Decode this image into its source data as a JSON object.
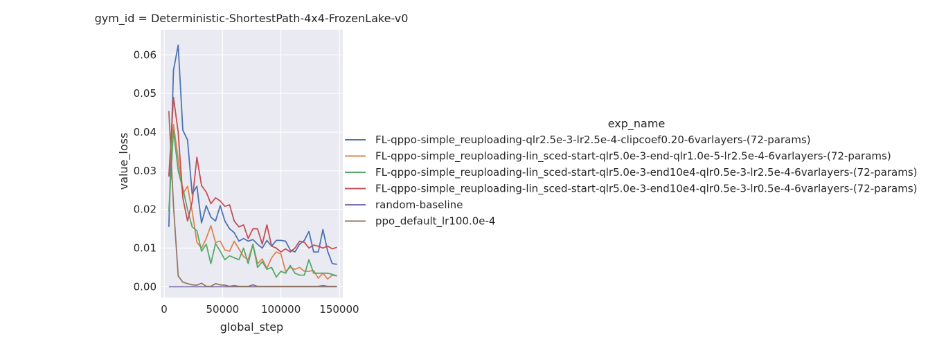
{
  "chart_data": {
    "type": "line",
    "title": "gym_id = Deterministic-ShortestPath-4x4-FrozenLake-v0",
    "xlabel": "global_step",
    "ylabel": "value_loss",
    "xlim": [
      -3000,
      153000
    ],
    "ylim": [
      -0.0028,
      0.0665
    ],
    "xticks": [
      0,
      50000,
      100000,
      150000
    ],
    "xtick_labels": [
      "0",
      "50000",
      "100000",
      "150000"
    ],
    "yticks": [
      0.0,
      0.01,
      0.02,
      0.03,
      0.04,
      0.05,
      0.06
    ],
    "ytick_labels": [
      "0.00",
      "0.01",
      "0.02",
      "0.03",
      "0.04",
      "0.05",
      "0.06"
    ],
    "grid": true,
    "legend": {
      "title": "exp_name",
      "placement": "right, outside plot"
    },
    "series": [
      {
        "name": "FL-qppo-simple_reuploading-qlr2.5e-3-lr2.5e-4-clipcoef0.20-6varlayers-(72-params)",
        "color": "#4c72b0",
        "x": [
          4000,
          8000,
          12000,
          16000,
          20000,
          24000,
          28000,
          32000,
          36000,
          40000,
          44000,
          48000,
          52000,
          56000,
          60000,
          64000,
          68000,
          72000,
          76000,
          80000,
          84000,
          88000,
          92000,
          96000,
          100000,
          104000,
          108000,
          112000,
          116000,
          120000,
          124000,
          128000,
          132000,
          136000,
          140000,
          144000,
          148000
        ],
        "y": [
          0.0155,
          0.056,
          0.0625,
          0.0405,
          0.038,
          0.024,
          0.026,
          0.0165,
          0.021,
          0.018,
          0.017,
          0.021,
          0.017,
          0.015,
          0.014,
          0.0118,
          0.0125,
          0.0118,
          0.0122,
          0.011,
          0.01,
          0.012,
          0.0105,
          0.012,
          0.012,
          0.0118,
          0.0095,
          0.009,
          0.011,
          0.012,
          0.0143,
          0.009,
          0.009,
          0.0148,
          0.0092,
          0.006,
          0.0058
        ]
      },
      {
        "name": "FL-qppo-simple_reuploading-lin_sced-start-qlr5.0e-3-end-qlr1.0e-5-lr2.5e-4-6varlayers-(72-params)",
        "color": "#dd8452",
        "x": [
          4000,
          8000,
          12000,
          16000,
          20000,
          24000,
          28000,
          32000,
          36000,
          40000,
          44000,
          48000,
          52000,
          56000,
          60000,
          64000,
          68000,
          72000,
          76000,
          80000,
          84000,
          88000,
          92000,
          96000,
          100000,
          104000,
          108000,
          112000,
          116000,
          120000,
          124000,
          128000,
          132000,
          136000,
          140000,
          144000,
          148000
        ],
        "y": [
          0.0285,
          0.042,
          0.033,
          0.024,
          0.026,
          0.0195,
          0.0115,
          0.01,
          0.0125,
          0.0158,
          0.0115,
          0.0118,
          0.0095,
          0.0092,
          0.0118,
          0.0098,
          0.0078,
          0.007,
          0.011,
          0.006,
          0.0072,
          0.0048,
          0.0075,
          0.009,
          0.0085,
          0.004,
          0.005,
          0.0045,
          0.005,
          0.004,
          0.004,
          0.0042,
          0.0022,
          0.0035,
          0.002,
          0.003,
          0.0028
        ]
      },
      {
        "name": "FL-qppo-simple_reuploading-lin_sced-start-qlr5.0e-3-end10e4-qlr0.5e-3-lr2.5e-4-6varlayers-(72-params)",
        "color": "#55a868",
        "x": [
          4000,
          8000,
          12000,
          16000,
          20000,
          24000,
          28000,
          32000,
          36000,
          40000,
          44000,
          48000,
          52000,
          56000,
          60000,
          64000,
          68000,
          72000,
          76000,
          80000,
          84000,
          88000,
          92000,
          96000,
          100000,
          104000,
          108000,
          112000,
          116000,
          120000,
          124000,
          128000,
          132000,
          136000,
          140000,
          144000,
          148000
        ],
        "y": [
          0.0195,
          0.0405,
          0.03,
          0.0255,
          0.02,
          0.0155,
          0.0145,
          0.0092,
          0.011,
          0.006,
          0.0112,
          0.0092,
          0.007,
          0.008,
          0.0075,
          0.007,
          0.01,
          0.006,
          0.011,
          0.005,
          0.0065,
          0.0045,
          0.005,
          0.0025,
          0.004,
          0.0035,
          0.0055,
          0.0035,
          0.003,
          0.003,
          0.007,
          0.0035,
          0.0035,
          0.0035,
          0.0035,
          0.0032,
          0.0028
        ]
      },
      {
        "name": "FL-qppo-simple_reuploading-lin_sced-start-qlr5.0e-3-end10e4-qlr0.5e-3-lr0.5e-4-6varlayers-(72-params)",
        "color": "#c44e52",
        "x": [
          4000,
          8000,
          12000,
          16000,
          20000,
          24000,
          28000,
          32000,
          36000,
          40000,
          44000,
          48000,
          52000,
          56000,
          60000,
          64000,
          68000,
          72000,
          76000,
          80000,
          84000,
          88000,
          92000,
          96000,
          100000,
          104000,
          108000,
          112000,
          116000,
          120000,
          124000,
          128000,
          132000,
          136000,
          140000,
          144000,
          148000
        ],
        "y": [
          0.0285,
          0.049,
          0.04,
          0.023,
          0.017,
          0.022,
          0.0335,
          0.0262,
          0.0245,
          0.0215,
          0.023,
          0.0222,
          0.0208,
          0.0212,
          0.017,
          0.0155,
          0.016,
          0.0125,
          0.015,
          0.015,
          0.011,
          0.016,
          0.0105,
          0.01,
          0.009,
          0.0098,
          0.009,
          0.01,
          0.0118,
          0.0115,
          0.01,
          0.0108,
          0.0105,
          0.01,
          0.0105,
          0.0098,
          0.0102
        ]
      },
      {
        "name": "random-baseline",
        "color": "#8172b3",
        "x": [
          4000,
          148000
        ],
        "y": [
          0.0,
          0.0
        ]
      },
      {
        "name": "ppo_default_lr100.0e-4",
        "color": "#937860",
        "x": [
          4000,
          8000,
          12000,
          16000,
          20000,
          24000,
          28000,
          32000,
          36000,
          40000,
          44000,
          48000,
          52000,
          56000,
          60000,
          64000,
          68000,
          72000,
          76000,
          80000,
          84000,
          88000,
          92000,
          96000,
          100000,
          104000,
          108000,
          112000,
          116000,
          120000,
          124000,
          128000,
          132000,
          136000,
          140000,
          144000,
          148000
        ],
        "y": [
          0.0455,
          0.021,
          0.0028,
          0.0012,
          0.0008,
          0.0005,
          0.0004,
          0.0009,
          0.0001,
          0.0001,
          0.0008,
          0.0005,
          0.0004,
          0.0001,
          0.0003,
          0.0001,
          0.0001,
          0.0001,
          0.0005,
          0.0001,
          0.0001,
          0.0001,
          0.0001,
          0.0001,
          0.0001,
          0.0001,
          0.0001,
          0.0001,
          0.0001,
          0.0001,
          0.0001,
          0.0001,
          0.0001,
          0.0003,
          0.0001,
          0.0001,
          0.0001
        ]
      }
    ]
  }
}
